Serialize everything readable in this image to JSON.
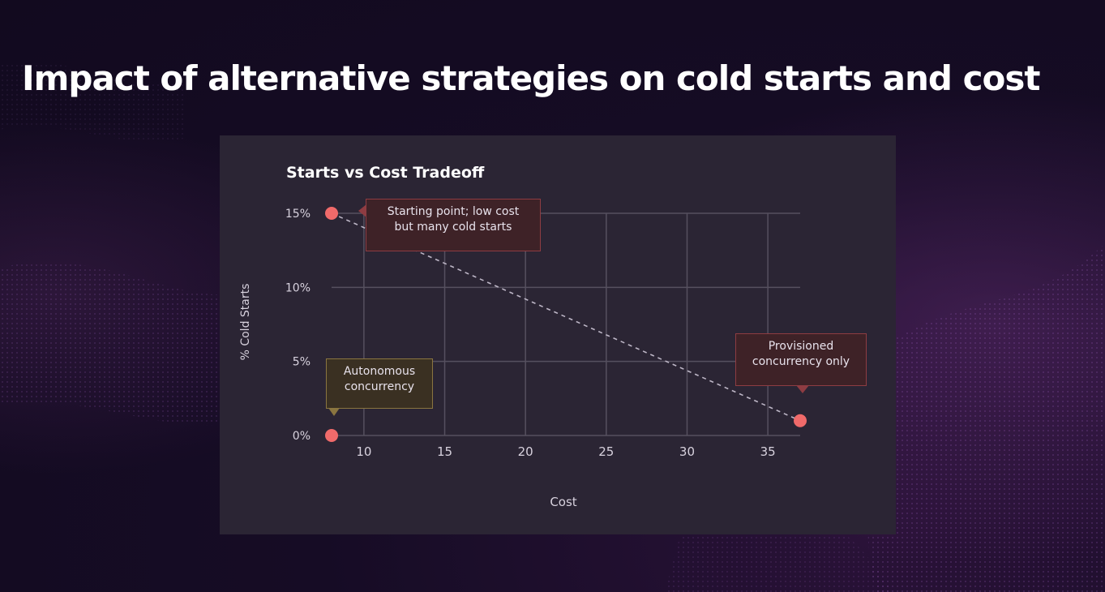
{
  "slide": {
    "title": "Impact of alternative strategies on cold starts and cost"
  },
  "colors": {
    "background": "#140b22",
    "card": "#2b2534",
    "point": "#f06a6a",
    "grid": "#56505f",
    "callout_red_border": "#8e3c42",
    "callout_gold_border": "#8a7540"
  },
  "chart_data": {
    "type": "scatter",
    "title": "Starts vs Cost Tradeoff",
    "xlabel": "Cost",
    "ylabel": "% Cold Starts",
    "x_ticks": [
      "10",
      "15",
      "20",
      "25",
      "30",
      "35"
    ],
    "y_ticks": [
      "0%",
      "5%",
      "10%",
      "15%"
    ],
    "xlim": [
      8,
      37
    ],
    "ylim": [
      0,
      15
    ],
    "grid": true,
    "points": [
      {
        "x": 8,
        "y": 15,
        "label": "Starting point; low cost but many cold starts"
      },
      {
        "x": 8,
        "y": 0,
        "label": "Autonomous concurrency"
      },
      {
        "x": 37,
        "y": 1,
        "label": "Provisioned concurrency only"
      }
    ],
    "trend_line": {
      "from": [
        8,
        15
      ],
      "to": [
        37,
        1
      ],
      "style": "dashed"
    },
    "annotations": [
      {
        "lines": [
          "Starting point; low cost",
          "but many cold starts"
        ],
        "style": "red"
      },
      {
        "lines": [
          "Autonomous",
          "concurrency"
        ],
        "style": "gold"
      },
      {
        "lines": [
          "Provisioned",
          "concurrency only"
        ],
        "style": "red"
      }
    ]
  }
}
